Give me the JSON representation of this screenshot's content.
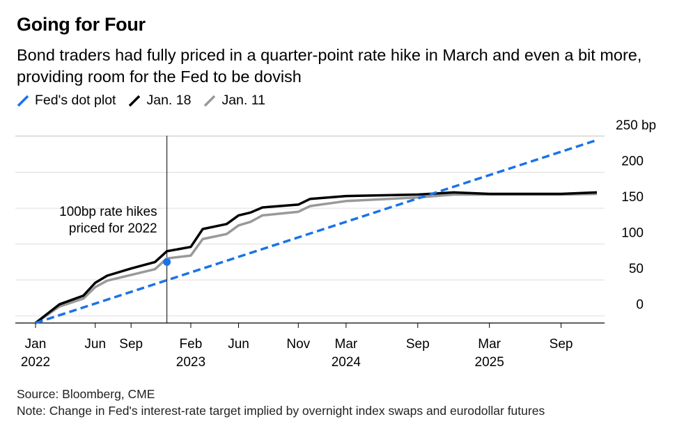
{
  "title": "Going for Four",
  "subtitle": "Bond traders had fully priced in a quarter-point rate hike in March and even a bit more, providing room for the Fed to be dovish",
  "source": "Source: Bloomberg, CME",
  "note": "Note: Change in Fed's interest-rate target implied by overnight index swaps and eurodollar futures",
  "colors": {
    "dot_plot": "#1a73e8",
    "jan18": "#000000",
    "jan11": "#999999",
    "grid": "#dddddd"
  },
  "chart_data": {
    "type": "line",
    "title": "Going for Four",
    "ylabel": "",
    "xlabel": "",
    "y_unit": "bp",
    "ylim": [
      -10,
      250
    ],
    "y_ticks": [
      0,
      50,
      100,
      150,
      200,
      250
    ],
    "y_tick_labels": [
      "0",
      "50",
      "100",
      "150",
      "200",
      "250 bp"
    ],
    "x_ticks": [
      {
        "date": "2022-01",
        "label": "Jan",
        "year": "2022"
      },
      {
        "date": "2022-06",
        "label": "Jun",
        "year": ""
      },
      {
        "date": "2022-09",
        "label": "Sep",
        "year": ""
      },
      {
        "date": "2023-02",
        "label": "Feb",
        "year": "2023"
      },
      {
        "date": "2023-06",
        "label": "Jun",
        "year": ""
      },
      {
        "date": "2023-11",
        "label": "Nov",
        "year": ""
      },
      {
        "date": "2024-03",
        "label": "Mar",
        "year": "2024"
      },
      {
        "date": "2024-09",
        "label": "Sep",
        "year": ""
      },
      {
        "date": "2025-03",
        "label": "Mar",
        "year": "2025"
      },
      {
        "date": "2025-09",
        "label": "Sep",
        "year": ""
      }
    ],
    "grid": true,
    "legend_position": "top-left",
    "annotation": {
      "text_lines": [
        "100bp rate hikes",
        "priced for 2022"
      ],
      "date": "2022-12",
      "value": 100
    },
    "marker": {
      "series": "Fed's dot plot",
      "date": "2022-12",
      "value": 75
    },
    "series": [
      {
        "name": "Fed's dot plot",
        "style": "dashed",
        "points": [
          [
            "2022-01",
            -10
          ],
          [
            "2025-12",
            245
          ]
        ]
      },
      {
        "name": "Jan. 18",
        "style": "solid",
        "points": [
          [
            "2022-01",
            -10
          ],
          [
            "2022-03",
            16
          ],
          [
            "2022-05",
            28
          ],
          [
            "2022-06",
            46
          ],
          [
            "2022-07",
            56
          ],
          [
            "2022-09",
            66
          ],
          [
            "2022-11",
            75
          ],
          [
            "2022-12",
            90
          ],
          [
            "2023-02",
            96
          ],
          [
            "2023-03",
            121
          ],
          [
            "2023-05",
            128
          ],
          [
            "2023-06",
            140
          ],
          [
            "2023-07",
            144
          ],
          [
            "2023-08",
            151
          ],
          [
            "2023-11",
            155
          ],
          [
            "2023-12",
            163
          ],
          [
            "2024-03",
            167
          ],
          [
            "2024-09",
            169
          ],
          [
            "2024-12",
            172
          ],
          [
            "2025-03",
            170
          ],
          [
            "2025-09",
            170
          ],
          [
            "2025-12",
            172
          ]
        ]
      },
      {
        "name": "Jan. 11",
        "style": "solid",
        "points": [
          [
            "2022-01",
            -10
          ],
          [
            "2022-03",
            13
          ],
          [
            "2022-05",
            24
          ],
          [
            "2022-06",
            40
          ],
          [
            "2022-07",
            49
          ],
          [
            "2022-09",
            57
          ],
          [
            "2022-11",
            65
          ],
          [
            "2022-12",
            80
          ],
          [
            "2023-02",
            84
          ],
          [
            "2023-03",
            107
          ],
          [
            "2023-05",
            114
          ],
          [
            "2023-06",
            126
          ],
          [
            "2023-07",
            131
          ],
          [
            "2023-08",
            140
          ],
          [
            "2023-11",
            145
          ],
          [
            "2023-12",
            153
          ],
          [
            "2024-03",
            160
          ],
          [
            "2024-09",
            165
          ],
          [
            "2024-12",
            169
          ],
          [
            "2025-03",
            169
          ],
          [
            "2025-09",
            169
          ],
          [
            "2025-12",
            170
          ]
        ]
      }
    ]
  }
}
